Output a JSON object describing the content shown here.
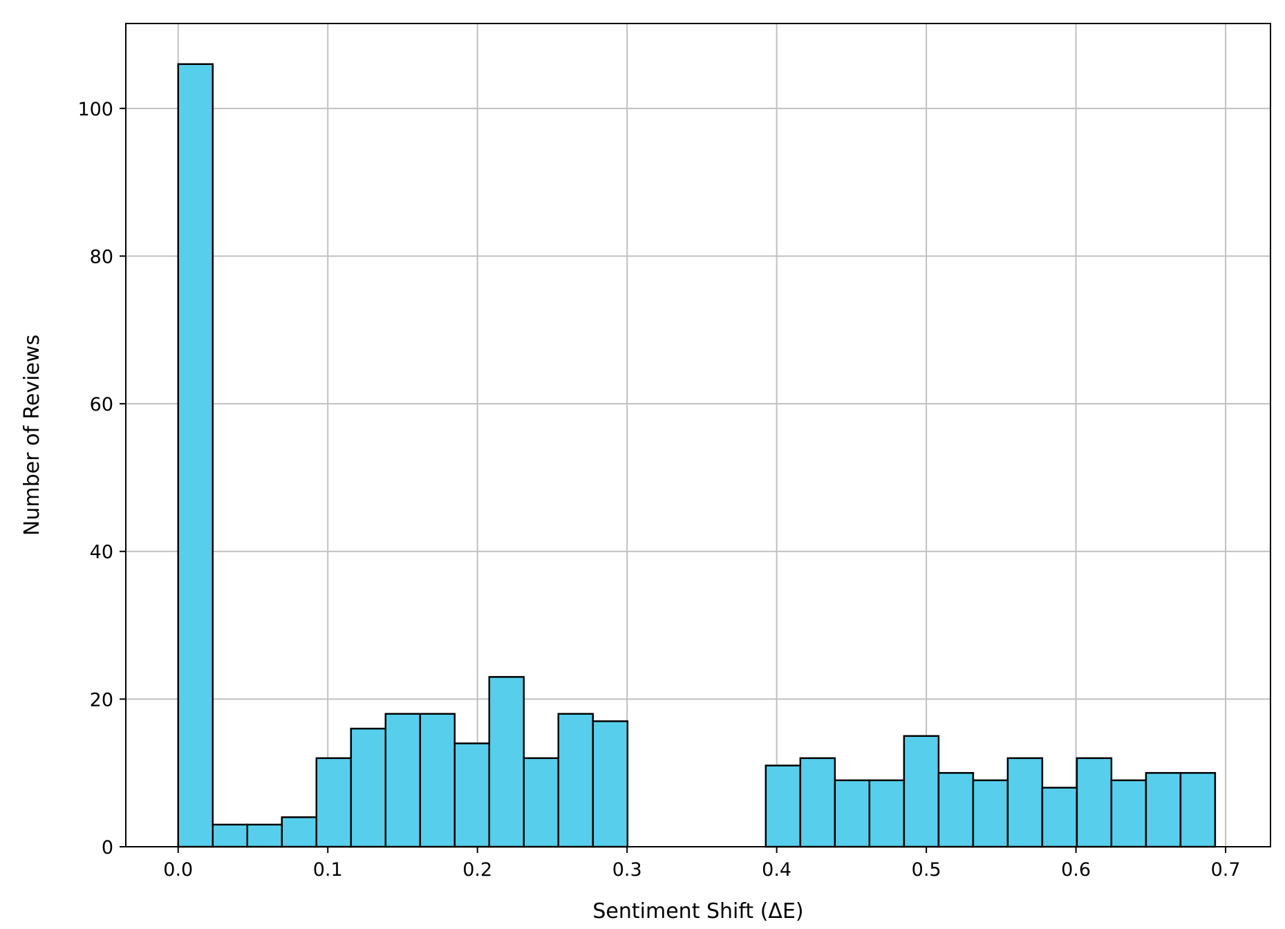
{
  "chart_data": {
    "type": "bar",
    "title": "",
    "xlabel": "Sentiment Shift (ΔE)",
    "ylabel": "Number of Reviews",
    "xlim": [
      -0.035,
      0.73
    ],
    "ylim": [
      0,
      111.5
    ],
    "xticks": [
      0.0,
      0.1,
      0.2,
      0.3,
      0.4,
      0.5,
      0.6,
      0.7
    ],
    "xtick_labels": [
      "0.0",
      "0.1",
      "0.2",
      "0.3",
      "0.4",
      "0.5",
      "0.6",
      "0.7"
    ],
    "yticks": [
      0,
      20,
      40,
      60,
      80,
      100
    ],
    "ytick_labels": [
      "0",
      "20",
      "40",
      "60",
      "80",
      "100"
    ],
    "grid": true,
    "bin_width": 0.0231,
    "bins_start": [
      0.0,
      0.0231,
      0.0462,
      0.0693,
      0.0924,
      0.1155,
      0.1386,
      0.1617,
      0.1848,
      0.2079,
      0.231,
      0.2541,
      0.2772,
      0.3003,
      0.3234,
      0.3465,
      0.3696,
      0.3927,
      0.4158,
      0.4389,
      0.462,
      0.4851,
      0.5082,
      0.5313,
      0.5544,
      0.5775,
      0.6006,
      0.6237,
      0.6468,
      0.6699
    ],
    "values": [
      106,
      3,
      3,
      4,
      12,
      16,
      18,
      18,
      14,
      23,
      12,
      18,
      17,
      0,
      0,
      0,
      0,
      11,
      12,
      9,
      9,
      15,
      10,
      9,
      12,
      8,
      12,
      9,
      10,
      10
    ],
    "colors": {
      "bar_fill": "#57CFEC",
      "bar_edge": "#000000",
      "grid": "#C0C0C0",
      "axes": "#000000"
    }
  }
}
